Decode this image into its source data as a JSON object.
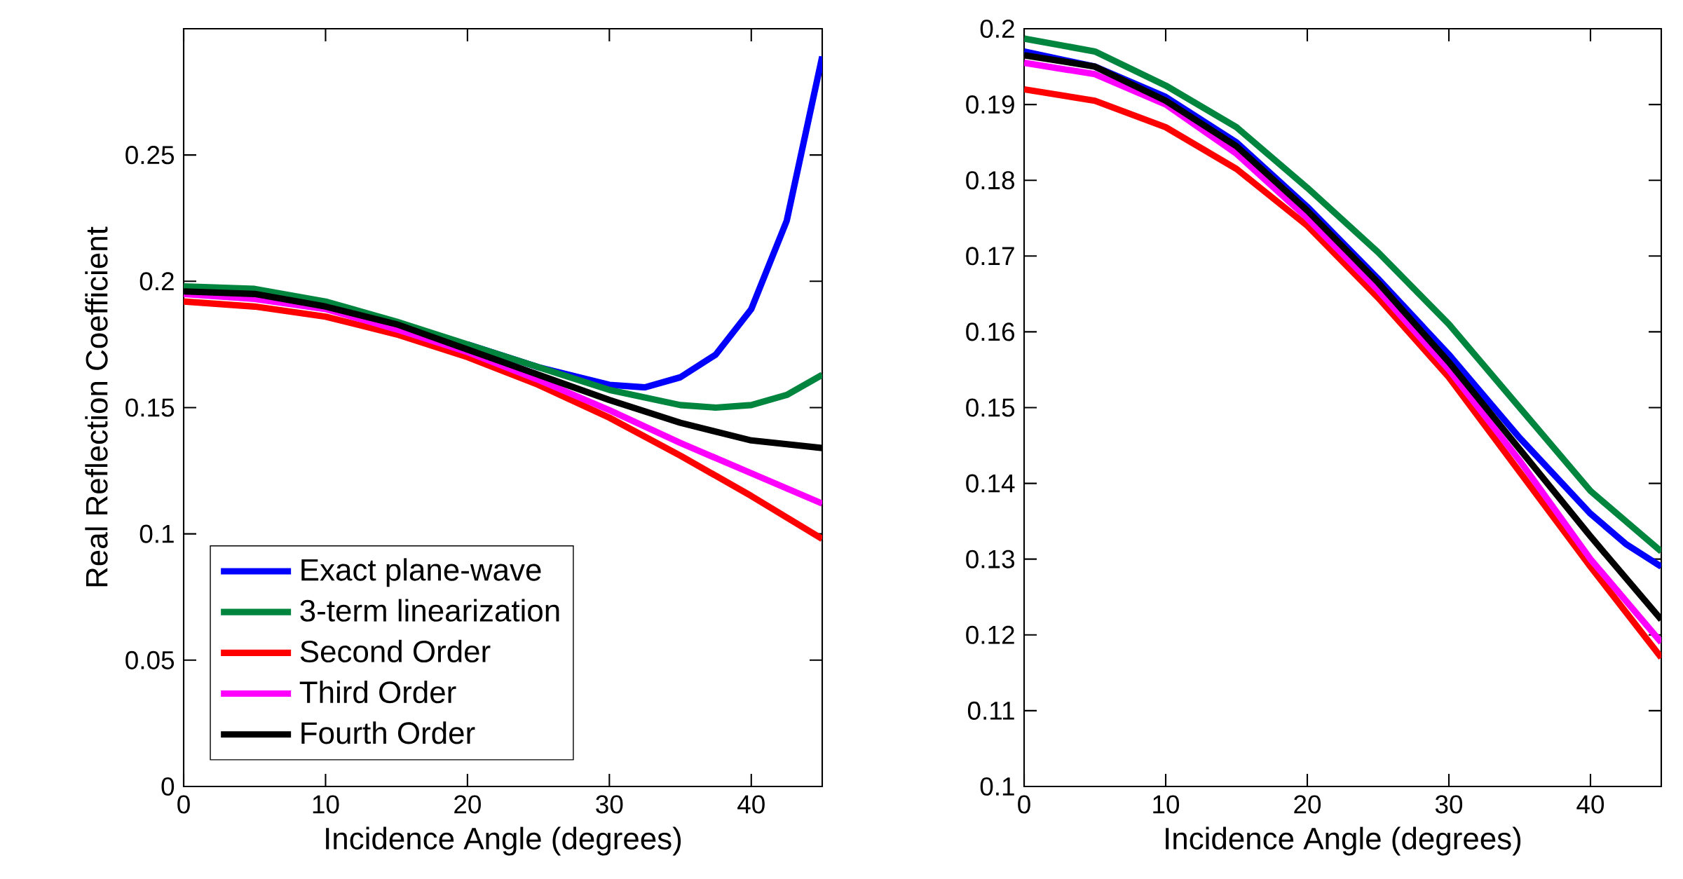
{
  "chart_data": [
    {
      "type": "line",
      "xlabel": "Incidence Angle (degrees)",
      "ylabel": "Real Reflection Coefficient",
      "xlim": [
        0,
        45
      ],
      "ylim": [
        0,
        0.3
      ],
      "xticks": [
        0,
        10,
        20,
        30,
        40
      ],
      "yticks": [
        0,
        0.05,
        0.1,
        0.15,
        0.2,
        0.25
      ],
      "legend": "bottom left",
      "marker": "none",
      "line_style": "solid",
      "grid": false,
      "series": [
        {
          "name": "Exact plane-wave",
          "color": "#0000ff",
          "x": [
            20,
            25,
            30,
            32.5,
            35,
            37.5,
            40,
            42.5,
            45
          ],
          "values": [
            0.175,
            0.166,
            0.159,
            0.158,
            0.162,
            0.171,
            0.189,
            0.224,
            0.289
          ]
        },
        {
          "name": "3-term linearization",
          "color": "#00853f",
          "x": [
            0,
            5,
            10,
            15,
            20,
            25,
            30,
            35,
            37.5,
            40,
            42.5,
            45
          ],
          "values": [
            0.198,
            0.197,
            0.192,
            0.184,
            0.175,
            0.166,
            0.157,
            0.151,
            0.15,
            0.151,
            0.155,
            0.163
          ]
        },
        {
          "name": "Second Order",
          "color": "#ff0000",
          "x": [
            0,
            5,
            10,
            15,
            20,
            25,
            30,
            35,
            40,
            45
          ],
          "values": [
            0.192,
            0.19,
            0.186,
            0.179,
            0.17,
            0.159,
            0.146,
            0.131,
            0.115,
            0.098
          ]
        },
        {
          "name": "Third Order",
          "color": "#ff00ff",
          "x": [
            0,
            5,
            10,
            15,
            20,
            25,
            30,
            35,
            40,
            45
          ],
          "values": [
            0.195,
            0.193,
            0.189,
            0.181,
            0.172,
            0.161,
            0.149,
            0.136,
            0.124,
            0.112
          ]
        },
        {
          "name": "Fourth Order",
          "color": "#000000",
          "x": [
            0,
            5,
            10,
            15,
            20,
            25,
            30,
            35,
            40,
            45
          ],
          "values": [
            0.196,
            0.195,
            0.19,
            0.183,
            0.173,
            0.163,
            0.153,
            0.144,
            0.137,
            0.134
          ]
        }
      ]
    },
    {
      "type": "line",
      "xlabel": "Incidence Angle (degrees)",
      "xlim": [
        0,
        45
      ],
      "ylim": [
        0.1,
        0.2
      ],
      "xticks": [
        0,
        10,
        20,
        30,
        40
      ],
      "yticks": [
        0.1,
        0.11,
        0.12,
        0.13,
        0.14,
        0.15,
        0.16,
        0.17,
        0.18,
        0.19,
        0.2
      ],
      "marker": "none",
      "line_style": "solid",
      "grid": false,
      "series": [
        {
          "color": "#0000ff",
          "x": [
            0,
            5,
            10,
            15,
            20,
            25,
            30,
            35,
            40,
            42.5,
            45
          ],
          "values": [
            0.197,
            0.195,
            0.191,
            0.185,
            0.1765,
            0.167,
            0.157,
            0.146,
            0.136,
            0.132,
            0.129
          ]
        },
        {
          "color": "#00853f",
          "x": [
            0,
            5,
            10,
            15,
            20,
            25,
            30,
            35,
            40,
            45
          ],
          "values": [
            0.1987,
            0.197,
            0.1925,
            0.187,
            0.179,
            0.1705,
            0.161,
            0.15,
            0.139,
            0.131
          ]
        },
        {
          "color": "#ff0000",
          "x": [
            0,
            5,
            10,
            15,
            20,
            25,
            30,
            35,
            40,
            45
          ],
          "values": [
            0.192,
            0.1905,
            0.187,
            0.1815,
            0.174,
            0.1645,
            0.154,
            0.1415,
            0.129,
            0.117
          ]
        },
        {
          "color": "#ff00ff",
          "x": [
            0,
            5,
            10,
            15,
            20,
            25,
            30,
            35,
            40,
            45
          ],
          "values": [
            0.1955,
            0.194,
            0.19,
            0.1835,
            0.175,
            0.1655,
            0.155,
            0.143,
            0.13,
            0.119
          ]
        },
        {
          "color": "#000000",
          "x": [
            0,
            5,
            10,
            15,
            20,
            25,
            30,
            35,
            40,
            45
          ],
          "values": [
            0.1965,
            0.195,
            0.1905,
            0.1845,
            0.176,
            0.1665,
            0.156,
            0.1445,
            0.133,
            0.122
          ]
        }
      ]
    }
  ]
}
